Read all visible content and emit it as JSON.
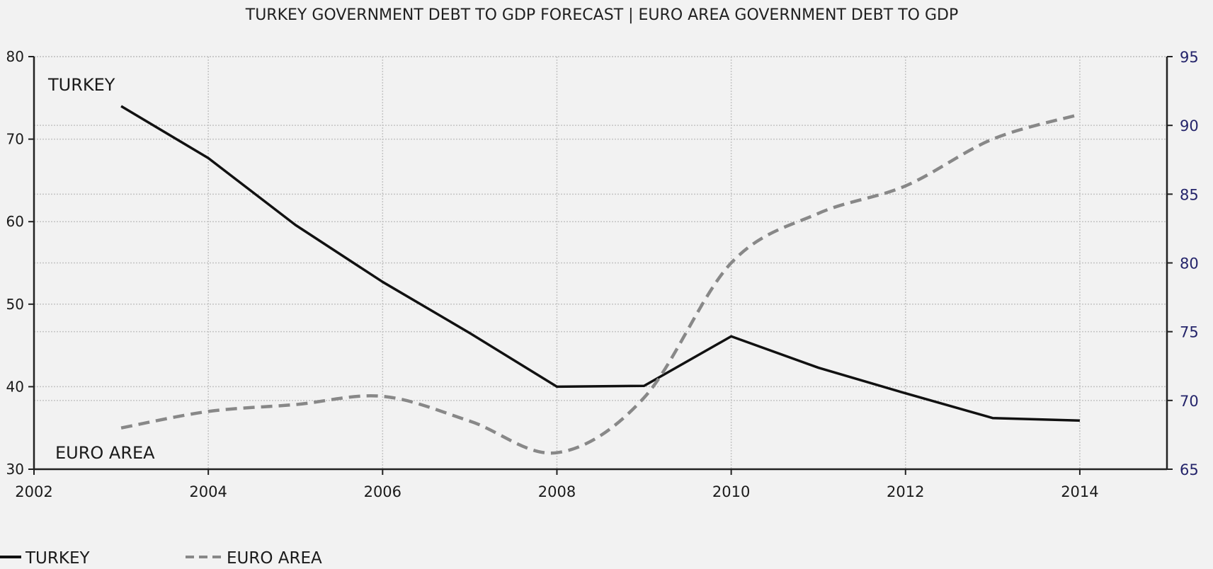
{
  "chart_data": {
    "type": "line",
    "title": "TURKEY GOVERNMENT DEBT TO GDP FORECAST |  EURO AREA GOVERNMENT DEBT TO GDP",
    "x": [
      2003,
      2004,
      2005,
      2006,
      2007,
      2008,
      2009,
      2010,
      2011,
      2012,
      2013,
      2014
    ],
    "xlim": [
      2002,
      2015
    ],
    "xticks": [
      "2002",
      "2004",
      "2006",
      "2008",
      "2010",
      "2012",
      "2014"
    ],
    "left_axis": {
      "ylim": [
        30,
        80
      ],
      "ticks": [
        "30",
        "40",
        "50",
        "60",
        "70",
        "80"
      ]
    },
    "right_axis": {
      "ylim": [
        65,
        95
      ],
      "ticks": [
        "65",
        "70",
        "75",
        "80",
        "85",
        "90",
        "95"
      ]
    },
    "grid": true,
    "series": [
      {
        "name": "TURKEY",
        "axis": "left",
        "style": "solid",
        "color": "#111111",
        "values": [
          74.0,
          67.7,
          59.6,
          52.7,
          46.5,
          40.0,
          40.1,
          46.1,
          42.3,
          39.2,
          36.2,
          35.9
        ]
      },
      {
        "name": "EURO AREA",
        "axis": "right",
        "style": "dashed",
        "color": "#888888",
        "values": [
          68.0,
          69.2,
          69.7,
          70.3,
          68.5,
          66.2,
          70.2,
          80.0,
          83.6,
          85.6,
          89.0,
          90.8
        ]
      }
    ],
    "annotations": [
      {
        "text": "TURKEY",
        "position": "top-left"
      },
      {
        "text": "EURO AREA",
        "position": "bottom-left"
      }
    ],
    "legend": {
      "position": "bottom-left",
      "items": [
        {
          "label": "TURKEY",
          "style": "solid"
        },
        {
          "label": "EURO AREA",
          "style": "dashed"
        }
      ]
    }
  }
}
